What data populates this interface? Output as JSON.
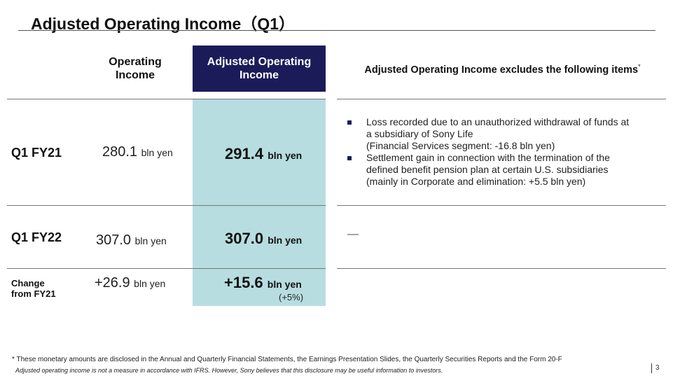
{
  "title": "Adjusted Operating Income（Q1）",
  "headers": {
    "operating_income_line1": "Operating",
    "operating_income_line2": "Income",
    "adjusted_line1": "Adjusted Operating",
    "adjusted_line2": "Income",
    "excludes": "Adjusted Operating Income excludes the following items",
    "excludes_mark": "*"
  },
  "rows": [
    {
      "label": "Q1 FY21",
      "operating_value": "280.1",
      "operating_unit": "bln yen",
      "adjusted_value": "291.4",
      "adjusted_unit": "bln yen"
    },
    {
      "label": "Q1 FY22",
      "operating_value": "307.0",
      "operating_unit": "bln yen",
      "adjusted_value": "307.0",
      "adjusted_unit": "bln yen"
    },
    {
      "label_line1": "Change",
      "label_line2": "from FY21",
      "operating_value": "+26.9",
      "operating_unit": "bln yen",
      "adjusted_value": "+15.6",
      "adjusted_unit": "bln yen",
      "adjusted_pct": "(+5%)"
    }
  ],
  "excluded_items": [
    {
      "lines": [
        "Loss recorded due to an unauthorized withdrawal of funds at",
        "a subsidiary of Sony Life",
        "(Financial Services segment: -16.8 bln yen)"
      ]
    },
    {
      "lines": [
        "Settlement gain in connection with the termination of the",
        "defined benefit pension plan at certain U.S. subsidiaries",
        "(mainly in Corporate and elimination: +5.5 bln yen)"
      ]
    }
  ],
  "fy22_excluded": "—",
  "footnotes": {
    "line1": "* These monetary amounts are disclosed in the Annual and Quarterly Financial Statements, the Earnings Presentation Slides, the Quarterly Securities Reports and the Form 20-F",
    "line2": "Adjusted operating income is not a measure in accordance with IFRS.  However, Sony believes that this disclosure may be useful information to investors."
  },
  "page_number": "3",
  "colors": {
    "header_navy": "#1b1b5a",
    "highlight_teal": "#b7dde0"
  }
}
